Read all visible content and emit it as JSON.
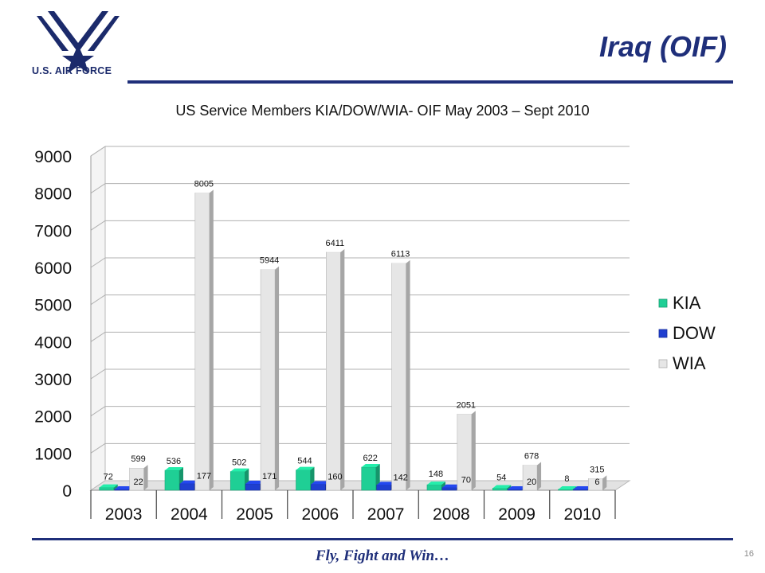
{
  "header": {
    "logo_text": "U.S. AIR FORCE",
    "title": "Iraq (OIF)"
  },
  "footer": {
    "motto": "Fly, Fight and Win…",
    "page_number": "16"
  },
  "colors": {
    "brand": "#1f2f7a",
    "kia": "#1fcf95",
    "dow": "#1f3fd0",
    "wia": "#e6e6e6"
  },
  "chart_data": {
    "type": "bar",
    "title": "US Service Members KIA/DOW/WIA- OIF May 2003 – Sept 2010",
    "xlabel": "",
    "ylabel": "",
    "categories": [
      "2003",
      "2004",
      "2005",
      "2006",
      "2007",
      "2008",
      "2009",
      "2010"
    ],
    "series": [
      {
        "name": "KIA",
        "values": [
          72,
          536,
          502,
          544,
          622,
          148,
          54,
          8
        ]
      },
      {
        "name": "DOW",
        "values": [
          22,
          177,
          171,
          160,
          142,
          70,
          20,
          6
        ]
      },
      {
        "name": "WIA",
        "values": [
          599,
          8005,
          5944,
          6411,
          6113,
          2051,
          678,
          315
        ]
      }
    ],
    "ylim": [
      0,
      9000
    ],
    "yticks": [
      "0",
      "1000",
      "2000",
      "3000",
      "4000",
      "5000",
      "6000",
      "7000",
      "8000",
      "9000"
    ],
    "grid": true,
    "legend_position": "right"
  }
}
